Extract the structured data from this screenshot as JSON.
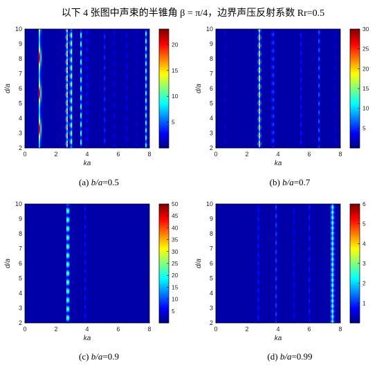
{
  "header": {
    "title": "以下 4 张图中声束的半锥角 β = π/4，边界声压反射系数 Rr=0.5"
  },
  "colormap": [
    "#00007f",
    "#0000ff",
    "#007fff",
    "#00ffff",
    "#7fff7f",
    "#ffff00",
    "#ff7f00",
    "#ff0000",
    "#7f0000"
  ],
  "chart_data": [
    {
      "type": "heatmap",
      "id": "a",
      "caption_prefix": "(a)  ",
      "caption_var": "b/a",
      "caption_value": "=0.5",
      "xlabel": "ka",
      "ylabel": "d/a",
      "xlim": [
        0,
        8
      ],
      "ylim": [
        2,
        10
      ],
      "xticks": [
        0,
        2,
        4,
        6,
        8
      ],
      "yticks": [
        2,
        3,
        4,
        5,
        6,
        7,
        8,
        9,
        10
      ],
      "clim": [
        0,
        23
      ],
      "colorbar_ticks": [
        5,
        10,
        15,
        20
      ],
      "ridges": [
        {
          "x": 0.95,
          "peak": 22,
          "width": 0.07,
          "period": 2.4,
          "phase": 3.3,
          "blob": 0.6,
          "base": 0.35
        },
        {
          "x": 2.7,
          "peak": 17,
          "width": 0.07,
          "period": 0.55,
          "phase": 2.3,
          "blob": 0.2,
          "base": 0.15
        },
        {
          "x": 2.95,
          "peak": 15,
          "width": 0.06,
          "period": 0.55,
          "phase": 2.45,
          "blob": 0.2,
          "base": 0.15
        },
        {
          "x": 3.6,
          "peak": 10,
          "width": 0.06,
          "period": 0.6,
          "phase": 2.4,
          "blob": 0.22,
          "base": 0.1
        },
        {
          "x": 4.0,
          "peak": 6,
          "width": 0.05,
          "period": 0.6,
          "phase": 2.6,
          "blob": 0.22,
          "base": 0.1
        },
        {
          "x": 5.1,
          "peak": 4,
          "width": 0.05,
          "period": 0.7,
          "phase": 2.5,
          "blob": 0.25,
          "base": 0.1
        },
        {
          "x": 5.7,
          "peak": 4,
          "width": 0.05,
          "period": 0.7,
          "phase": 2.8,
          "blob": 0.25,
          "base": 0.1
        },
        {
          "x": 6.5,
          "peak": 4,
          "width": 0.05,
          "period": 0.7,
          "phase": 2.6,
          "blob": 0.25,
          "base": 0.1
        },
        {
          "x": 7.2,
          "peak": 3.5,
          "width": 0.05,
          "period": 0.7,
          "phase": 2.9,
          "blob": 0.25,
          "base": 0.1
        },
        {
          "x": 7.8,
          "peak": 12,
          "width": 0.06,
          "period": 0.5,
          "phase": 2.2,
          "blob": 0.18,
          "base": 0.15
        }
      ]
    },
    {
      "type": "heatmap",
      "id": "b",
      "caption_prefix": "(b) ",
      "caption_var": "b/a",
      "caption_value": "=0.7",
      "xlabel": "ka",
      "ylabel": "d/a",
      "xlim": [
        0,
        8
      ],
      "ylim": [
        2,
        10
      ],
      "xticks": [
        0,
        2,
        4,
        6,
        8
      ],
      "yticks": [
        2,
        3,
        4,
        5,
        6,
        7,
        8,
        9,
        10
      ],
      "clim": [
        0,
        30
      ],
      "colorbar_ticks": [
        5,
        10,
        15,
        20,
        25,
        30
      ],
      "ridges": [
        {
          "x": 0.6,
          "peak": 3,
          "width": 0.05,
          "period": 0.9,
          "phase": 2.5,
          "blob": 0.3,
          "base": 0.2
        },
        {
          "x": 1.6,
          "peak": 2.5,
          "width": 0.05,
          "period": 0.9,
          "phase": 2.9,
          "blob": 0.3,
          "base": 0.2
        },
        {
          "x": 2.8,
          "peak": 22,
          "width": 0.08,
          "period": 0.55,
          "phase": 2.3,
          "blob": 0.2,
          "base": 0.15
        },
        {
          "x": 3.65,
          "peak": 9,
          "width": 0.06,
          "period": 0.55,
          "phase": 2.5,
          "blob": 0.2,
          "base": 0.12
        },
        {
          "x": 5.5,
          "peak": 7,
          "width": 0.05,
          "period": 0.6,
          "phase": 2.4,
          "blob": 0.22,
          "base": 0.12
        },
        {
          "x": 6.6,
          "peak": 8,
          "width": 0.05,
          "period": 0.6,
          "phase": 2.6,
          "blob": 0.22,
          "base": 0.12
        },
        {
          "x": 7.7,
          "peak": 3,
          "width": 0.05,
          "period": 0.7,
          "phase": 2.5,
          "blob": 0.25,
          "base": 0.12
        }
      ]
    },
    {
      "type": "heatmap",
      "id": "c",
      "caption_prefix": "(c) ",
      "caption_var": "b/a",
      "caption_value": "=0.9",
      "xlabel": "ka",
      "ylabel": "d/a",
      "xlim": [
        0,
        8
      ],
      "ylim": [
        2,
        10
      ],
      "xticks": [
        0,
        2,
        4,
        6,
        8
      ],
      "yticks": [
        2,
        3,
        4,
        5,
        6,
        7,
        8,
        9,
        10
      ],
      "clim": [
        0,
        50
      ],
      "colorbar_ticks": [
        5,
        10,
        15,
        20,
        25,
        30,
        35,
        40,
        45,
        50
      ],
      "ridges": [
        {
          "x": 2.75,
          "peak": 30,
          "width": 0.08,
          "period": 0.6,
          "phase": 2.35,
          "blob": 0.2,
          "base": 0.12
        },
        {
          "x": 3.85,
          "peak": 8,
          "width": 0.05,
          "period": 0.6,
          "phase": 2.5,
          "blob": 0.22,
          "base": 0.15
        }
      ]
    },
    {
      "type": "heatmap",
      "id": "d",
      "caption_prefix": "(d) ",
      "caption_var": "b/a",
      "caption_value": "=0.99",
      "xlabel": "ka",
      "ylabel": "d/a",
      "xlim": [
        0,
        8
      ],
      "ylim": [
        2,
        10
      ],
      "xticks": [
        0,
        2,
        4,
        6,
        8
      ],
      "yticks": [
        2,
        3,
        4,
        5,
        6,
        7,
        8,
        9,
        10
      ],
      "clim": [
        0,
        6
      ],
      "colorbar_ticks": [
        1,
        2,
        3,
        4,
        5,
        6
      ],
      "ridges": [
        {
          "x": 2.75,
          "peak": 1.6,
          "width": 0.05,
          "period": 0.6,
          "phase": 2.4,
          "blob": 0.22,
          "base": 0.25
        },
        {
          "x": 3.85,
          "peak": 1.3,
          "width": 0.05,
          "period": 0.6,
          "phase": 2.6,
          "blob": 0.22,
          "base": 0.25
        },
        {
          "x": 5.0,
          "peak": 0.9,
          "width": 0.05,
          "period": 0.7,
          "phase": 2.5,
          "blob": 0.25,
          "base": 0.25
        },
        {
          "x": 6.0,
          "peak": 0.9,
          "width": 0.05,
          "period": 0.7,
          "phase": 2.8,
          "blob": 0.25,
          "base": 0.25
        },
        {
          "x": 7.5,
          "peak": 3.2,
          "width": 0.1,
          "period": 0.35,
          "phase": 2.1,
          "blob": 0.14,
          "base": 0.35
        }
      ]
    }
  ]
}
